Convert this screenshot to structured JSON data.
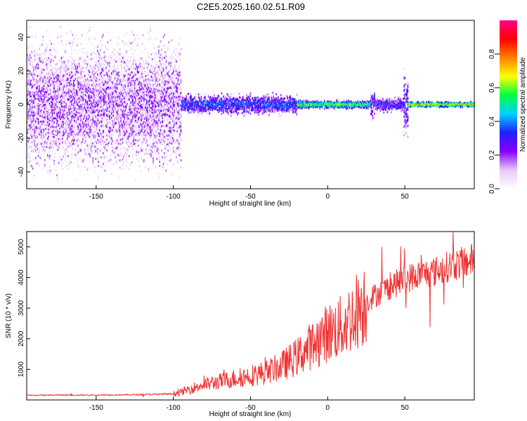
{
  "title": "C2E5.2025.160.02.51.R09",
  "chart_data": [
    {
      "type": "heatmap",
      "xlabel": "Height of straight line (km)",
      "ylabel": "Frequency (Hz)",
      "xlim": [
        -195,
        95
      ],
      "ylim": [
        -50,
        50
      ],
      "xticks": [
        -150,
        -100,
        -50,
        0,
        50
      ],
      "yticks": [
        -40,
        -20,
        0,
        20,
        40
      ],
      "colorbar": {
        "label": "Normalized spectral amplitude",
        "range": [
          0,
          1
        ],
        "ticks": [
          "0.0",
          "0.2",
          "0.4",
          "0.6",
          "0.8"
        ],
        "colors": [
          "#ffffff",
          "#e8c8f8",
          "#8800ff",
          "#2020ff",
          "#00d0ff",
          "#00ff40",
          "#ffff00",
          "#ff8000",
          "#ff0000",
          "#ff0088"
        ]
      },
      "features": [
        {
          "x_range": [
            -195,
            -95
          ],
          "freq_spread": 50,
          "mean_amplitude": 0.15
        },
        {
          "x_range": [
            -95,
            -20
          ],
          "freq_spread": 8,
          "mean_amplitude": 0.35
        },
        {
          "x_range": [
            -20,
            27
          ],
          "freq_spread": 3,
          "mean_amplitude": 0.6
        },
        {
          "x_range": [
            27,
            30
          ],
          "freq_spread": 12,
          "mean_amplitude": 0.3
        },
        {
          "x_range": [
            49,
            52
          ],
          "freq_spread": 25,
          "mean_amplitude": 0.3
        },
        {
          "x_range": [
            52,
            95
          ],
          "freq_spread": 2,
          "mean_amplitude": 0.7
        }
      ]
    },
    {
      "type": "line",
      "xlabel": "Height of straight line (km)",
      "ylabel": "SNR (10 * v/v)",
      "xlim": [
        -195,
        95
      ],
      "ylim": [
        0,
        5500
      ],
      "xticks": [
        -150,
        -100,
        -50,
        0,
        50
      ],
      "yticks": [
        1000,
        2000,
        3000,
        4000,
        5000
      ],
      "color": "#ee3333",
      "series": [
        {
          "x": [
            -195,
            -175,
            -150,
            -125,
            -100,
            -95,
            -90,
            -80,
            -70,
            -60,
            -50,
            -40,
            -30,
            -20,
            -10,
            0,
            10,
            20,
            30,
            40,
            50,
            60,
            70,
            80,
            90,
            95
          ],
          "y": [
            150,
            160,
            160,
            170,
            200,
            250,
            350,
            500,
            600,
            700,
            800,
            900,
            1100,
            1400,
            1800,
            2200,
            2400,
            3000,
            3400,
            3700,
            3950,
            4100,
            4200,
            4400,
            4500,
            4600
          ]
        }
      ]
    }
  ]
}
